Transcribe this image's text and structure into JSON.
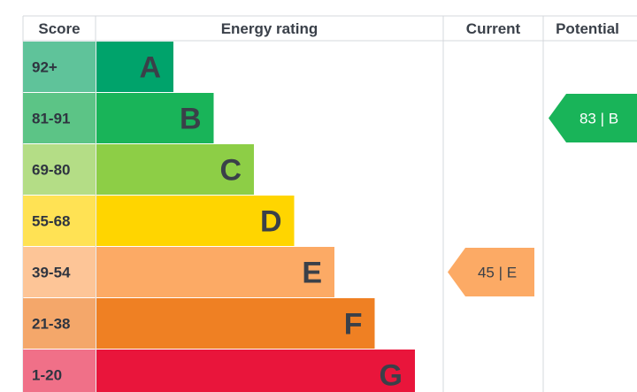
{
  "chart_data": {
    "type": "bar",
    "headers": {
      "score": "Score",
      "rating": "Energy rating",
      "current": "Current",
      "potential": "Potential"
    },
    "bands": [
      {
        "score": "92+",
        "letter": "A",
        "color": "#00a36b",
        "score_bg": "#5fc39a",
        "min": 92
      },
      {
        "score": "81-91",
        "letter": "B",
        "color": "#19b459",
        "score_bg": "#5cc486",
        "min": 81
      },
      {
        "score": "69-80",
        "letter": "C",
        "color": "#8dce46",
        "score_bg": "#b4dd86",
        "min": 69
      },
      {
        "score": "55-68",
        "letter": "D",
        "color": "#ffd500",
        "score_bg": "#ffe254",
        "min": 55
      },
      {
        "score": "39-54",
        "letter": "E",
        "color": "#fcaa65",
        "score_bg": "#fdc597",
        "min": 39
      },
      {
        "score": "21-38",
        "letter": "F",
        "color": "#ef8023",
        "score_bg": "#f4a76a",
        "min": 21
      },
      {
        "score": "1-20",
        "letter": "G",
        "color": "#e9153b",
        "score_bg": "#f07088",
        "min": 1
      }
    ],
    "current": {
      "value": 45,
      "band": "E",
      "label": "45 | E",
      "color": "#fcaa65",
      "text_color": "#3a4049"
    },
    "potential": {
      "value": 83,
      "band": "B",
      "label": "83 | B",
      "color": "#19b459",
      "text_color": "#ffffff"
    }
  }
}
